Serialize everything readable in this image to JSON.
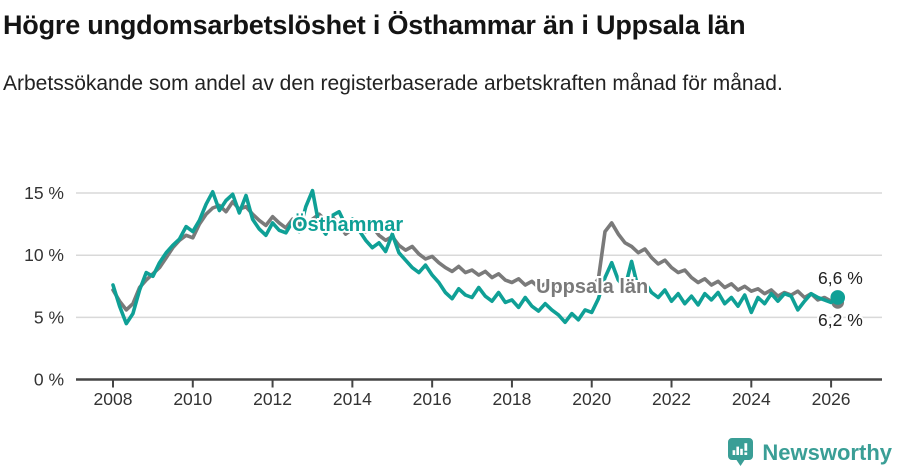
{
  "title": "Högre ungdomsarbetslöshet i Östhammar än i Uppsala län",
  "subtitle": "Arbetssökande som andel av den registerbaserade arbetskraften månad för månad.",
  "colors": {
    "osthammar": "#0fa096",
    "uppsala": "#7a7a7a",
    "grid": "#d9d9d9",
    "axis": "#454545",
    "tick_text": "#333333",
    "brand": "#3a9e96"
  },
  "footer": {
    "brand": "Newsworthy",
    "logo_icon": "bar-chart-speech-bubble-icon"
  },
  "chart_data": {
    "type": "line",
    "title": "Högre ungdomsarbetslöshet i Östhammar än i Uppsala län",
    "subtitle": "Arbetssökande som andel av den registerbaserade arbetskraften månad för månad.",
    "x_start_year": 2008,
    "points_per_year": 6,
    "x_ticks": [
      2008,
      2010,
      2012,
      2014,
      2016,
      2018,
      2020,
      2022,
      2024,
      2026
    ],
    "y_ticks": [
      15,
      10,
      5,
      0
    ],
    "y_tick_labels": [
      "15 %",
      "10 %",
      "5 %",
      "0 %"
    ],
    "ylim": [
      0,
      16
    ],
    "grid": true,
    "legend_position": "inline-labels",
    "series": [
      {
        "name": "Östhammar",
        "color": "#0fa096",
        "end_label": "6,6 %",
        "end_value": 6.6,
        "values": [
          7.6,
          5.9,
          4.5,
          5.3,
          7.2,
          8.6,
          8.3,
          9.4,
          10.2,
          10.8,
          11.3,
          12.3,
          11.9,
          12.8,
          14.1,
          15.1,
          13.6,
          14.4,
          14.9,
          13.4,
          14.8,
          12.9,
          12.1,
          11.6,
          12.6,
          12.0,
          11.8,
          12.7,
          11.9,
          13.9,
          15.2,
          12.4,
          11.7,
          13.2,
          13.5,
          12.4,
          12.9,
          12.0,
          11.2,
          10.6,
          11.0,
          10.3,
          11.7,
          10.2,
          9.6,
          9.0,
          8.6,
          9.2,
          8.4,
          7.8,
          7.0,
          6.5,
          7.3,
          6.8,
          6.6,
          7.4,
          6.7,
          6.3,
          7.0,
          6.2,
          6.4,
          5.8,
          6.6,
          5.9,
          5.5,
          6.1,
          5.6,
          5.2,
          4.6,
          5.3,
          4.8,
          5.6,
          5.4,
          6.5,
          8.2,
          9.4,
          8.0,
          7.4,
          9.5,
          7.3,
          7.8,
          7.0,
          6.6,
          7.2,
          6.3,
          6.9,
          6.1,
          6.7,
          6.0,
          6.9,
          6.4,
          7.0,
          6.1,
          6.6,
          5.9,
          6.8,
          5.4,
          6.6,
          6.1,
          6.9,
          6.3,
          6.9,
          6.7,
          5.6,
          6.3,
          6.9,
          6.6,
          6.4,
          6.2,
          6.6
        ]
      },
      {
        "name": "Uppsala län",
        "color": "#7a7a7a",
        "end_label": "6,2 %",
        "end_value": 6.2,
        "values": [
          7.2,
          6.3,
          5.6,
          6.1,
          7.4,
          8.0,
          8.5,
          9.0,
          9.8,
          10.6,
          11.2,
          11.6,
          11.4,
          12.5,
          13.3,
          13.8,
          14.0,
          13.5,
          14.3,
          13.7,
          13.9,
          13.3,
          12.8,
          12.4,
          13.1,
          12.6,
          12.2,
          12.9,
          12.5,
          12.2,
          12.9,
          13.3,
          12.8,
          13.1,
          12.4,
          11.7,
          12.1,
          12.6,
          11.9,
          12.3,
          11.6,
          11.2,
          11.5,
          10.8,
          10.4,
          10.7,
          10.1,
          9.7,
          9.9,
          9.4,
          9.0,
          8.7,
          9.1,
          8.6,
          8.8,
          8.4,
          8.7,
          8.2,
          8.5,
          8.0,
          7.8,
          8.1,
          7.6,
          7.9,
          7.4,
          7.7,
          7.3,
          7.6,
          7.1,
          7.4,
          7.0,
          7.3,
          7.4,
          8.1,
          11.9,
          12.6,
          11.7,
          11.0,
          10.7,
          10.2,
          10.5,
          9.8,
          9.3,
          9.6,
          9.0,
          8.6,
          8.8,
          8.2,
          7.8,
          8.1,
          7.6,
          7.9,
          7.4,
          7.7,
          7.2,
          7.5,
          7.1,
          7.3,
          6.9,
          7.2,
          6.7,
          7.0,
          6.8,
          7.1,
          6.6,
          6.9,
          6.4,
          6.6,
          6.3,
          6.2
        ]
      }
    ]
  }
}
